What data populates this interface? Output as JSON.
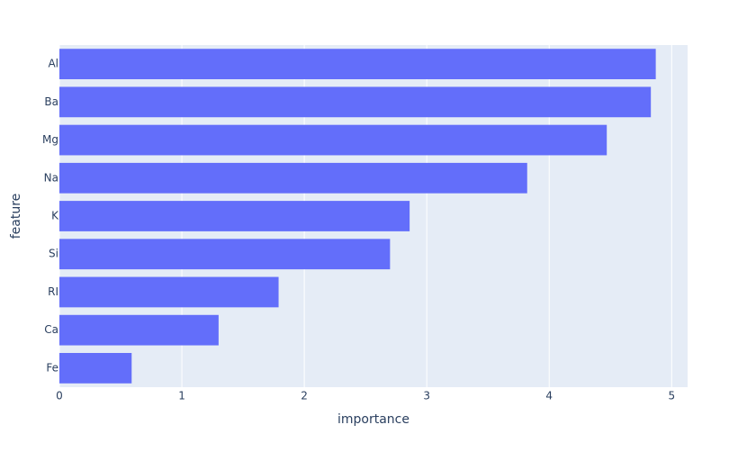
{
  "chart_data": {
    "type": "barh",
    "x_label": "importance",
    "y_label": "feature",
    "categories": [
      "Al",
      "Ba",
      "Mg",
      "Na",
      "K",
      "Si",
      "RI",
      "Ca",
      "Fe"
    ],
    "values": [
      4.87,
      4.83,
      4.47,
      3.82,
      2.86,
      2.7,
      1.79,
      1.3,
      0.59
    ],
    "color": "#636efa",
    "xlim": [
      0,
      5.13
    ],
    "xticks": [
      0,
      1,
      2,
      3,
      4,
      5
    ],
    "grid": true
  }
}
